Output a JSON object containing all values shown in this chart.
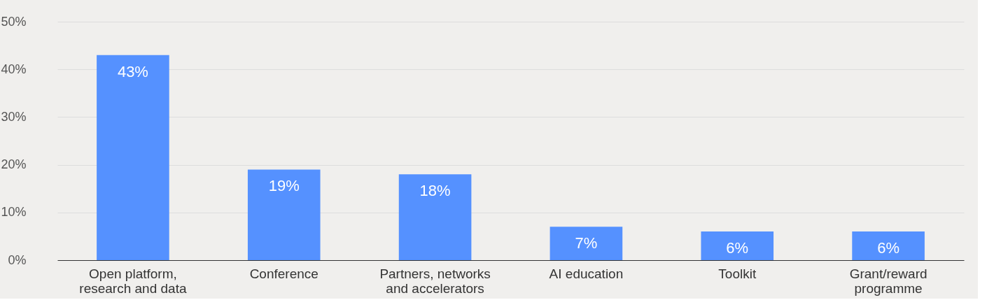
{
  "chart_data": {
    "type": "bar",
    "categories": [
      "Open platform, research and data",
      "Conference",
      "Partners, networks and accelerators",
      "AI education",
      "Toolkit",
      "Grant/reward programme"
    ],
    "values": [
      43,
      19,
      18,
      7,
      6,
      6
    ],
    "value_labels": [
      "43%",
      "19%",
      "18%",
      "7%",
      "6%",
      "6%"
    ],
    "color": "#5591ff",
    "ylim": [
      0,
      50
    ],
    "yticks": [
      {
        "value": 0,
        "label": "0%"
      },
      {
        "value": 10,
        "label": "10%"
      },
      {
        "value": 20,
        "label": "20%"
      },
      {
        "value": 30,
        "label": "30%"
      },
      {
        "value": 40,
        "label": "40%"
      },
      {
        "value": 50,
        "label": "50%"
      }
    ],
    "grid": "y"
  }
}
